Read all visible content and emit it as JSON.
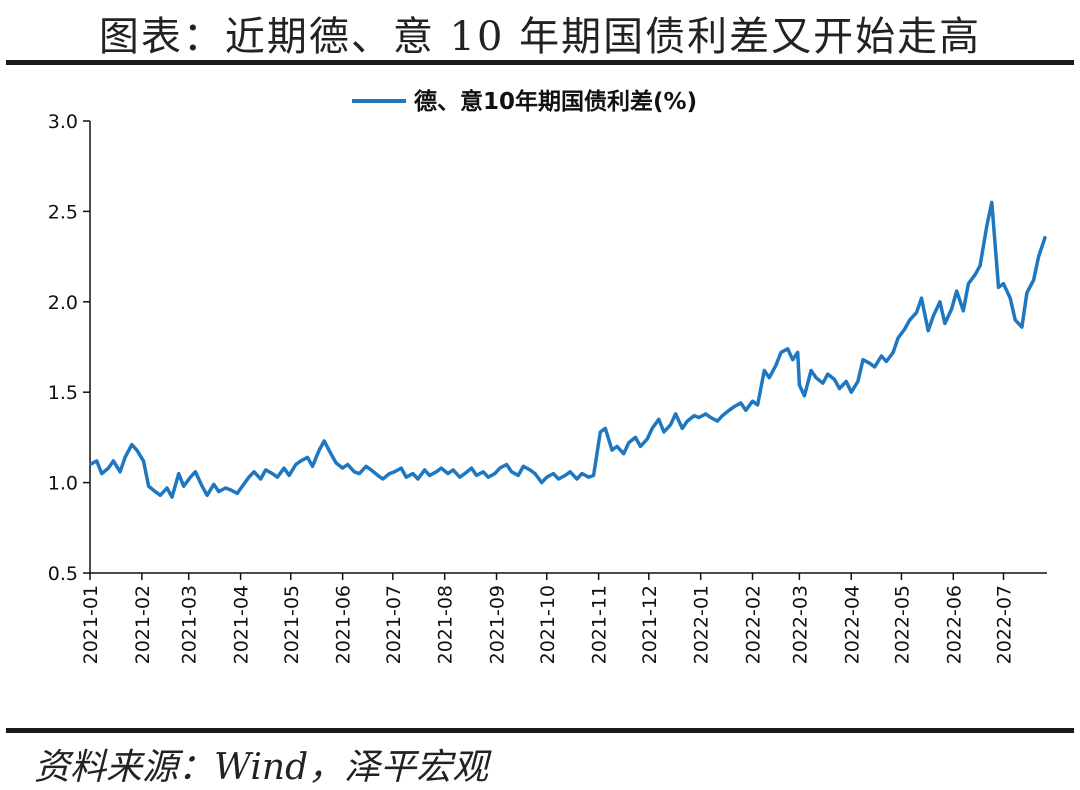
{
  "page": {
    "title": "图表：近期德、意 10 年期国债利差又开始走高",
    "source": "资料来源：Wind，泽平宏观"
  },
  "chart_data": {
    "type": "line",
    "title": "",
    "xlabel": "",
    "ylabel": "",
    "ylim": [
      0.5,
      3.0
    ],
    "yticks": [
      "0.5",
      "1.0",
      "1.5",
      "2.0",
      "2.5",
      "3.0"
    ],
    "xticks": [
      "2021-01",
      "2021-02",
      "2021-03",
      "2021-04",
      "2021-05",
      "2021-06",
      "2021-07",
      "2021-08",
      "2021-09",
      "2021-10",
      "2021-11",
      "2021-12",
      "2022-01",
      "2022-02",
      "2022-03",
      "2022-04",
      "2022-05",
      "2022-06",
      "2022-07"
    ],
    "grid": false,
    "legend_position": "top-center",
    "color": "#1f77c0",
    "series": [
      {
        "name": "德、意10年期国债利差(%)",
        "x": [
          "2021-01-01",
          "2021-01-05",
          "2021-01-08",
          "2021-01-12",
          "2021-01-15",
          "2021-01-19",
          "2021-01-22",
          "2021-01-26",
          "2021-01-29",
          "2021-02-02",
          "2021-02-05",
          "2021-02-09",
          "2021-02-12",
          "2021-02-16",
          "2021-02-19",
          "2021-02-23",
          "2021-02-26",
          "2021-03-02",
          "2021-03-05",
          "2021-03-09",
          "2021-03-12",
          "2021-03-16",
          "2021-03-19",
          "2021-03-23",
          "2021-03-26",
          "2021-03-30",
          "2021-04-02",
          "2021-04-06",
          "2021-04-09",
          "2021-04-13",
          "2021-04-16",
          "2021-04-20",
          "2021-04-23",
          "2021-04-27",
          "2021-04-30",
          "2021-05-04",
          "2021-05-07",
          "2021-05-11",
          "2021-05-14",
          "2021-05-18",
          "2021-05-21",
          "2021-05-25",
          "2021-05-28",
          "2021-06-01",
          "2021-06-04",
          "2021-06-08",
          "2021-06-11",
          "2021-06-15",
          "2021-06-18",
          "2021-06-22",
          "2021-06-25",
          "2021-06-29",
          "2021-07-02",
          "2021-07-06",
          "2021-07-09",
          "2021-07-13",
          "2021-07-16",
          "2021-07-20",
          "2021-07-23",
          "2021-07-27",
          "2021-07-30",
          "2021-08-03",
          "2021-08-06",
          "2021-08-10",
          "2021-08-13",
          "2021-08-17",
          "2021-08-20",
          "2021-08-24",
          "2021-08-27",
          "2021-08-31",
          "2021-09-03",
          "2021-09-07",
          "2021-09-10",
          "2021-09-14",
          "2021-09-17",
          "2021-09-21",
          "2021-09-24",
          "2021-09-28",
          "2021-10-01",
          "2021-10-05",
          "2021-10-08",
          "2021-10-12",
          "2021-10-15",
          "2021-10-19",
          "2021-10-22",
          "2021-10-26",
          "2021-10-29",
          "2021-11-02",
          "2021-11-05",
          "2021-11-09",
          "2021-11-12",
          "2021-11-16",
          "2021-11-19",
          "2021-11-23",
          "2021-11-26",
          "2021-11-30",
          "2021-12-03",
          "2021-12-07",
          "2021-12-10",
          "2021-12-14",
          "2021-12-17",
          "2021-12-21",
          "2021-12-24",
          "2021-12-28",
          "2021-12-31",
          "2022-01-04",
          "2022-01-07",
          "2022-01-11",
          "2022-01-14",
          "2022-01-18",
          "2022-01-21",
          "2022-01-25",
          "2022-01-28",
          "2022-02-01",
          "2022-02-04",
          "2022-02-08",
          "2022-02-11",
          "2022-02-15",
          "2022-02-18",
          "2022-02-22",
          "2022-02-25",
          "2022-02-28",
          "2022-03-01",
          "2022-03-04",
          "2022-03-08",
          "2022-03-11",
          "2022-03-15",
          "2022-03-18",
          "2022-03-22",
          "2022-03-25",
          "2022-03-29",
          "2022-04-01",
          "2022-04-05",
          "2022-04-08",
          "2022-04-12",
          "2022-04-15",
          "2022-04-19",
          "2022-04-22",
          "2022-04-26",
          "2022-04-29",
          "2022-05-03",
          "2022-05-06",
          "2022-05-10",
          "2022-05-13",
          "2022-05-17",
          "2022-05-20",
          "2022-05-24",
          "2022-05-27",
          "2022-05-31",
          "2022-06-03",
          "2022-06-07",
          "2022-06-10",
          "2022-06-14",
          "2022-06-17",
          "2022-06-21",
          "2022-06-24",
          "2022-06-28",
          "2022-07-01",
          "2022-07-05",
          "2022-07-08",
          "2022-07-12",
          "2022-07-15",
          "2022-07-19",
          "2022-07-22",
          "2022-07-26"
        ],
        "values": [
          1.1,
          1.12,
          1.05,
          1.08,
          1.12,
          1.06,
          1.14,
          1.21,
          1.18,
          1.12,
          0.98,
          0.95,
          0.93,
          0.97,
          0.92,
          1.05,
          0.98,
          1.03,
          1.06,
          0.98,
          0.93,
          0.99,
          0.95,
          0.97,
          0.96,
          0.94,
          0.98,
          1.03,
          1.06,
          1.02,
          1.07,
          1.05,
          1.03,
          1.08,
          1.04,
          1.1,
          1.12,
          1.14,
          1.09,
          1.18,
          1.23,
          1.16,
          1.11,
          1.08,
          1.1,
          1.06,
          1.05,
          1.09,
          1.07,
          1.04,
          1.02,
          1.05,
          1.06,
          1.08,
          1.03,
          1.05,
          1.02,
          1.07,
          1.04,
          1.06,
          1.08,
          1.05,
          1.07,
          1.03,
          1.05,
          1.08,
          1.04,
          1.06,
          1.03,
          1.05,
          1.08,
          1.1,
          1.06,
          1.04,
          1.09,
          1.07,
          1.05,
          1.0,
          1.03,
          1.05,
          1.02,
          1.04,
          1.06,
          1.02,
          1.05,
          1.03,
          1.04,
          1.28,
          1.3,
          1.18,
          1.2,
          1.16,
          1.22,
          1.25,
          1.2,
          1.24,
          1.3,
          1.35,
          1.28,
          1.32,
          1.38,
          1.3,
          1.34,
          1.37,
          1.36,
          1.38,
          1.36,
          1.34,
          1.37,
          1.4,
          1.42,
          1.44,
          1.4,
          1.45,
          1.43,
          1.62,
          1.58,
          1.65,
          1.72,
          1.74,
          1.68,
          1.72,
          1.54,
          1.48,
          1.62,
          1.58,
          1.55,
          1.6,
          1.57,
          1.52,
          1.56,
          1.5,
          1.56,
          1.68,
          1.66,
          1.64,
          1.7,
          1.67,
          1.72,
          1.8,
          1.85,
          1.9,
          1.94,
          2.02,
          1.84,
          1.92,
          2.0,
          1.88,
          1.96,
          2.06,
          1.95,
          2.1,
          2.15,
          2.2,
          2.42,
          2.55,
          2.08,
          2.1,
          2.02,
          1.9,
          1.86,
          2.05,
          2.12,
          2.25,
          2.36
        ]
      }
    ]
  }
}
